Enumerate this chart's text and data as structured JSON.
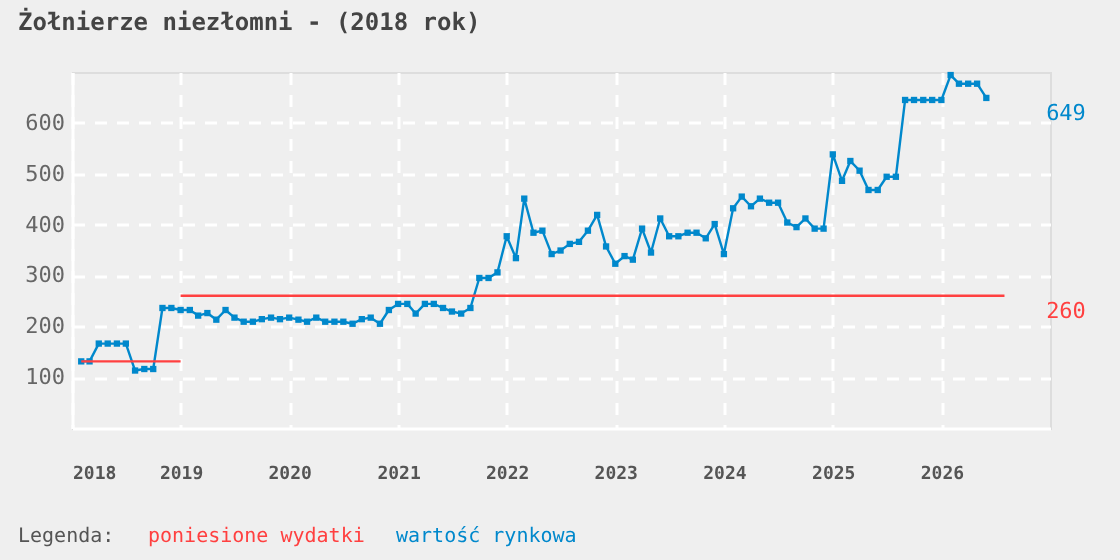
{
  "chart_data": {
    "type": "line",
    "title": "Żołnierze niezłomni - (2018 rok)",
    "legend_title": "Legenda:",
    "legend": "bottom",
    "grid": true,
    "xlim": [
      "2018",
      "2027"
    ],
    "xticks": [
      "2018",
      "2019",
      "2020",
      "2021",
      "2022",
      "2023",
      "2024",
      "2025",
      "2026"
    ],
    "ylim": [
      0,
      700
    ],
    "yticks": [
      100,
      200,
      300,
      400,
      500,
      600
    ],
    "annotations": [
      {
        "text": "649",
        "x": "2026-06",
        "y": 649
      },
      {
        "text": "260",
        "x": "2026-08",
        "y": 260
      }
    ],
    "series": [
      {
        "name": "poniesione wydatki",
        "color": "#ff4040",
        "marker": "none",
        "x": [
          "2018-02",
          "2019-01"
        ],
        "values": [
          131,
          131
        ]
      },
      {
        "color": "#ff4040",
        "marker": "none",
        "x": [
          "2019-01",
          "2026-08"
        ],
        "values": [
          260,
          260
        ]
      },
      {
        "name": "wartość rynkowa",
        "color": "#0088cc",
        "marker": "square",
        "x": [
          "2018-02",
          "2018-03",
          "2018-04",
          "2018-05",
          "2018-06",
          "2018-07",
          "2018-08",
          "2018-09",
          "2018-10",
          "2018-11",
          "2018-12",
          "2019-01",
          "2019-02",
          "2019-03",
          "2019-04",
          "2019-05",
          "2019-06",
          "2019-07",
          "2019-08",
          "2019-09",
          "2019-10",
          "2019-11",
          "2019-12",
          "2020-01",
          "2020-02",
          "2020-03",
          "2020-04",
          "2020-05",
          "2020-06",
          "2020-07",
          "2020-08",
          "2020-09",
          "2020-10",
          "2020-11",
          "2020-12",
          "2021-01",
          "2021-02",
          "2021-03",
          "2021-04",
          "2021-05",
          "2021-06",
          "2021-07",
          "2021-08",
          "2021-09",
          "2021-10",
          "2021-11",
          "2021-12",
          "2022-01",
          "2022-02",
          "2022-03",
          "2022-04",
          "2022-05",
          "2022-06",
          "2022-07",
          "2022-08",
          "2022-09",
          "2022-10",
          "2022-11",
          "2022-12",
          "2023-01",
          "2023-02",
          "2023-03",
          "2023-04",
          "2023-05",
          "2023-06",
          "2023-07",
          "2023-08",
          "2023-09",
          "2023-10",
          "2023-11",
          "2023-12",
          "2024-01",
          "2024-02",
          "2024-03",
          "2024-04",
          "2024-05",
          "2024-06",
          "2024-07",
          "2024-08",
          "2024-09",
          "2024-10",
          "2024-11",
          "2024-12",
          "2025-01",
          "2025-02",
          "2025-03",
          "2025-04",
          "2025-05",
          "2025-06",
          "2025-07",
          "2025-08",
          "2025-09",
          "2025-10",
          "2025-11",
          "2025-12",
          "2026-01",
          "2026-02",
          "2026-03",
          "2026-04",
          "2026-05",
          "2026-06"
        ],
        "values": [
          131,
          131,
          166,
          166,
          166,
          166,
          113,
          116,
          116,
          236,
          236,
          232,
          232,
          221,
          226,
          213,
          232,
          217,
          209,
          209,
          214,
          217,
          214,
          217,
          213,
          209,
          217,
          209,
          209,
          209,
          205,
          214,
          217,
          205,
          232,
          244,
          244,
          225,
          244,
          244,
          236,
          229,
          225,
          236,
          295,
          295,
          306,
          377,
          334,
          451,
          384,
          388,
          342,
          349,
          362,
          366,
          388,
          419,
          357,
          323,
          338,
          331,
          392,
          345,
          412,
          377,
          377,
          384,
          384,
          373,
          401,
          342,
          432,
          455,
          436,
          451,
          443,
          443,
          404,
          395,
          412,
          392,
          392,
          538,
          486,
          525,
          506,
          468,
          468,
          494,
          494,
          645,
          645,
          645,
          645,
          645,
          694,
          677,
          677,
          677,
          649
        ]
      }
    ]
  }
}
